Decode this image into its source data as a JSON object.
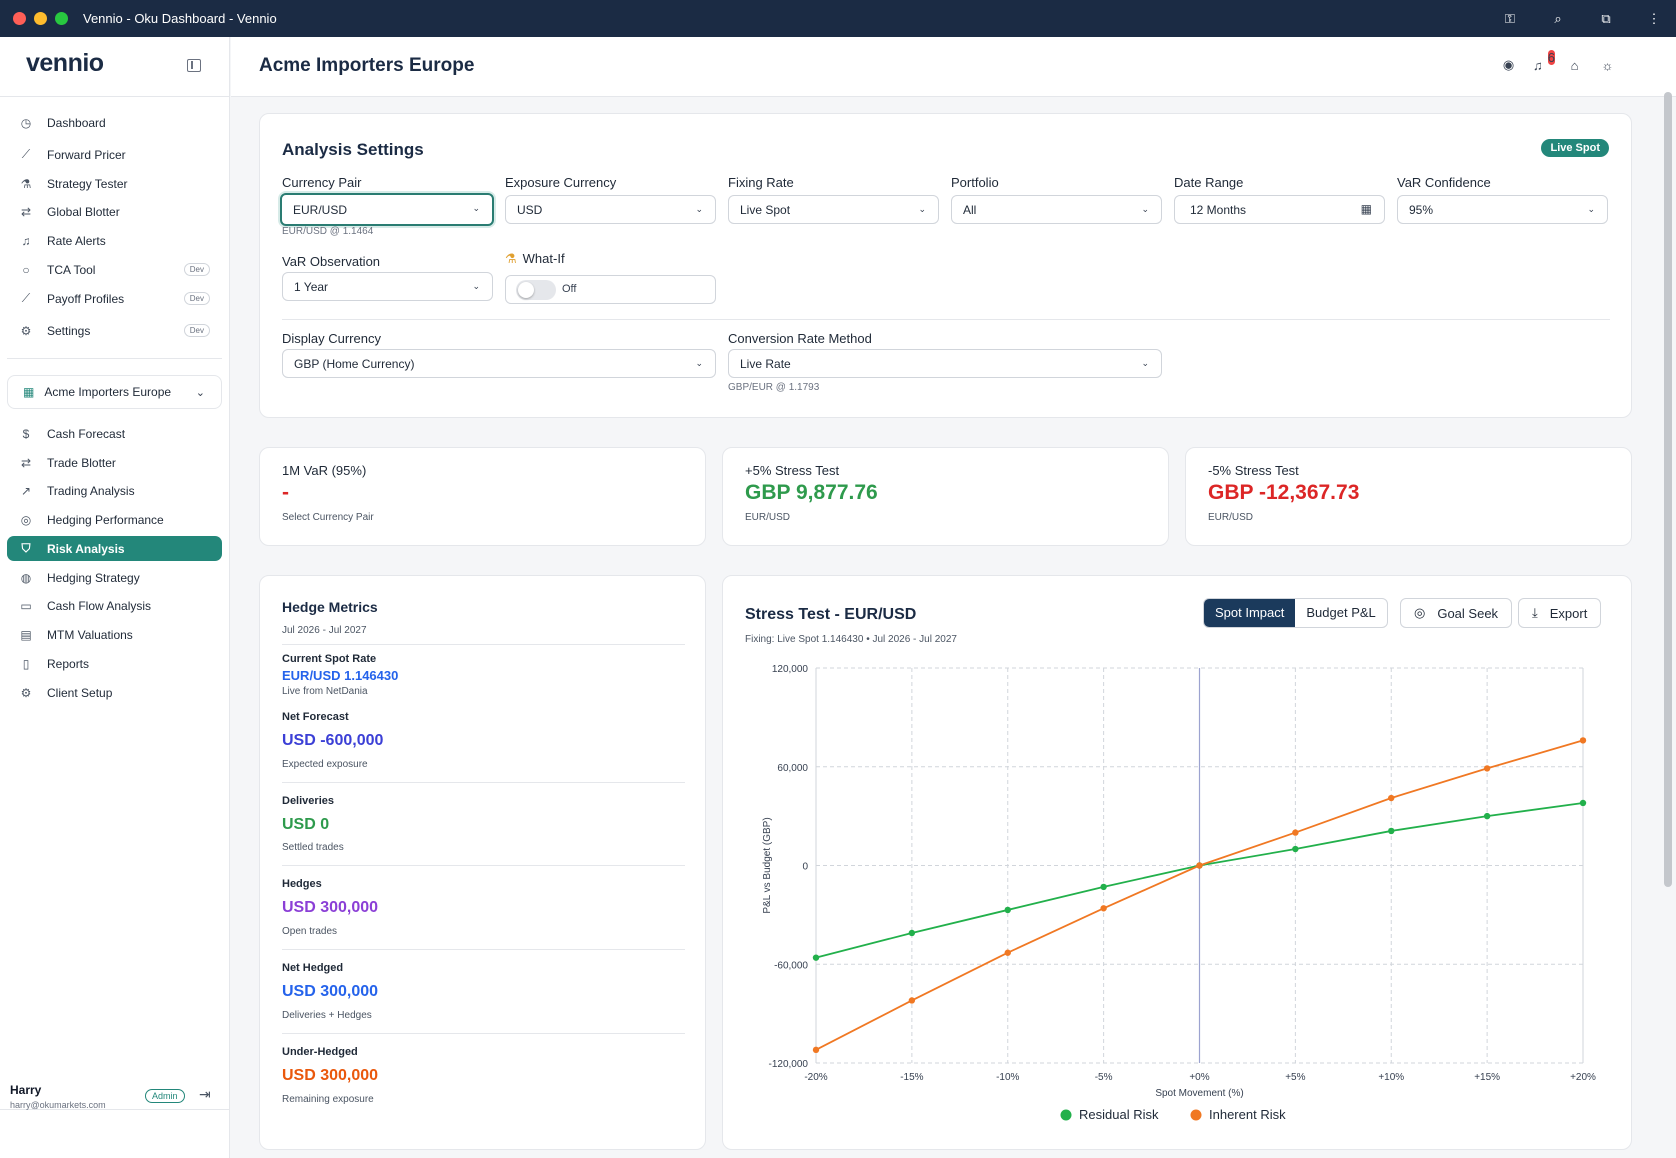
{
  "window": {
    "title": "Vennio - Oku Dashboard - Vennio"
  },
  "sidebar": {
    "logo": "vennio",
    "top_nav": [
      {
        "label": "Dashboard",
        "icon": "clock-icon"
      },
      {
        "label": "Forward Pricer",
        "icon": "line-chart-icon"
      },
      {
        "label": "Strategy Tester",
        "icon": "flask-icon"
      },
      {
        "label": "Global Blotter",
        "icon": "arrows-icon"
      },
      {
        "label": "Rate Alerts",
        "icon": "bell-icon"
      },
      {
        "label": "TCA Tool",
        "icon": "search-icon",
        "badge": "Dev"
      },
      {
        "label": "Payoff Profiles",
        "icon": "curve-icon",
        "badge": "Dev"
      },
      {
        "label": "Settings",
        "icon": "gear-icon",
        "badge": "Dev"
      }
    ],
    "client_selector": "Acme Importers Europe",
    "client_nav": [
      {
        "label": "Cash Forecast",
        "icon": "dollar-icon"
      },
      {
        "label": "Trade Blotter",
        "icon": "arrows-icon"
      },
      {
        "label": "Trading Analysis",
        "icon": "trend-icon"
      },
      {
        "label": "Hedging Performance",
        "icon": "target-icon"
      },
      {
        "label": "Risk Analysis",
        "icon": "shield-icon",
        "active": true
      },
      {
        "label": "Hedging Strategy",
        "icon": "compass-icon"
      },
      {
        "label": "Cash Flow Analysis",
        "icon": "wallet-icon"
      },
      {
        "label": "MTM Valuations",
        "icon": "calculator-icon"
      },
      {
        "label": "Reports",
        "icon": "document-icon"
      },
      {
        "label": "Client Setup",
        "icon": "gear-icon"
      }
    ],
    "user": {
      "name": "Harry",
      "email": "harry@okumarkets.com",
      "role": "Admin"
    }
  },
  "header": {
    "title": "Acme Importers Europe",
    "notification_count": "6"
  },
  "settings": {
    "title": "Analysis Settings",
    "live_badge": "Live Spot",
    "currency_pair": {
      "label": "Currency Pair",
      "value": "EUR/USD",
      "hint": "EUR/USD @ 1.1464"
    },
    "exposure_currency": {
      "label": "Exposure Currency",
      "value": "USD"
    },
    "fixing_rate": {
      "label": "Fixing Rate",
      "value": "Live Spot"
    },
    "portfolio": {
      "label": "Portfolio",
      "value": "All"
    },
    "date_range": {
      "label": "Date Range",
      "value": "12 Months"
    },
    "var_confidence": {
      "label": "VaR Confidence",
      "value": "95%"
    },
    "var_observation": {
      "label": "VaR Observation",
      "value": "1 Year"
    },
    "what_if": {
      "label": "What-If",
      "state": "Off"
    },
    "display_currency": {
      "label": "Display Currency",
      "value": "GBP (Home Currency)"
    },
    "conversion_method": {
      "label": "Conversion Rate Method",
      "value": "Live Rate",
      "hint": "GBP/EUR @ 1.1793"
    }
  },
  "stats": [
    {
      "label": "1M VaR (95%)",
      "value": "-",
      "sub": "Select Currency Pair",
      "color": "#dc2626"
    },
    {
      "label": "+5% Stress Test",
      "value": "GBP 9,877.76",
      "sub": "EUR/USD",
      "color": "#2e9a4c"
    },
    {
      "label": "-5% Stress Test",
      "value": "GBP -12,367.73",
      "sub": "EUR/USD",
      "color": "#dc2626"
    }
  ],
  "hedge_metrics": {
    "title": "Hedge Metrics",
    "period": "Jul 2026 - Jul 2027",
    "current_spot": {
      "label": "Current Spot Rate",
      "value": "EUR/USD 1.146430",
      "sub": "Live from NetDania"
    },
    "items": [
      {
        "label": "Net Forecast",
        "value": "USD -600,000",
        "sub": "Expected exposure",
        "color": "#3b3fd6"
      },
      {
        "label": "Deliveries",
        "value": "USD 0",
        "sub": "Settled trades",
        "color": "#2e9a4c"
      },
      {
        "label": "Hedges",
        "value": "USD 300,000",
        "sub": "Open trades",
        "color": "#8b3fd6"
      },
      {
        "label": "Net Hedged",
        "value": "USD 300,000",
        "sub": "Deliveries + Hedges",
        "color": "#2563eb"
      },
      {
        "label": "Under-Hedged",
        "value": "USD 300,000",
        "sub": "Remaining exposure",
        "color": "#ea580c"
      }
    ]
  },
  "stress_chart": {
    "title": "Stress Test - EUR/USD",
    "subtitle": "Fixing: Live Spot 1.146430  •  Jul 2026 - Jul 2027",
    "tabs": [
      "Spot Impact",
      "Budget P&L"
    ],
    "goal_seek": "Goal Seek",
    "export": "Export"
  },
  "chart_data": {
    "type": "line",
    "x": [
      "-20%",
      "-15%",
      "-10%",
      "-5%",
      "+0%",
      "+5%",
      "+10%",
      "+15%",
      "+20%"
    ],
    "series": [
      {
        "name": "Residual Risk",
        "color": "#22b04b",
        "values": [
          -56000,
          -41000,
          -27000,
          -13000,
          0,
          10000,
          21000,
          30000,
          38000
        ]
      },
      {
        "name": "Inherent Risk",
        "color": "#f07823",
        "values": [
          -112000,
          -82000,
          -53000,
          -26000,
          0,
          20000,
          41000,
          59000,
          76000
        ]
      }
    ],
    "xlabel": "Spot Movement (%)",
    "ylabel": "P&L vs Budget (GBP)",
    "ylim": [
      -120000,
      120000
    ],
    "yticks": [
      "120,000",
      "60,000",
      "0",
      "-60,000",
      "-120,000"
    ],
    "grid": true,
    "legend": "bottom"
  }
}
